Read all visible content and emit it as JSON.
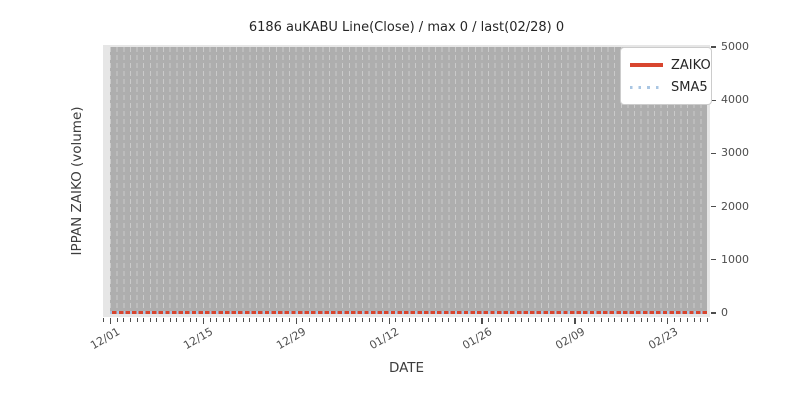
{
  "chart_data": {
    "type": "line",
    "title": "6186 auKABU Line(Close) / max 0 / last(02/28) 0",
    "xlabel": "DATE",
    "ylabel": "IPPAN ZAIKO (volume)",
    "ylim": [
      0,
      5000
    ],
    "yticks": [
      0,
      1000,
      2000,
      3000,
      4000,
      5000
    ],
    "x_major_ticks": [
      {
        "label": "12/01",
        "day": 0
      },
      {
        "label": "12/15",
        "day": 14
      },
      {
        "label": "12/29",
        "day": 28
      },
      {
        "label": "01/12",
        "day": 42
      },
      {
        "label": "01/26",
        "day": 56
      },
      {
        "label": "02/09",
        "day": 70
      },
      {
        "label": "02/23",
        "day": 84
      }
    ],
    "x_days_total": 90,
    "x_minor_tick_every_days": 1,
    "date_start": "12/01",
    "date_end": "02/28",
    "series": [
      {
        "name": "ZAIKO",
        "style": "solid",
        "color": "#d8452e",
        "constant_value": 0
      },
      {
        "name": "SMA5",
        "style": "dotted",
        "color": "#a9c6e3",
        "constant_value": 0
      }
    ],
    "stats": {
      "max": 0,
      "last_date": "02/28",
      "last_value": 0
    },
    "legend": {
      "position": "upper right",
      "entries": [
        "ZAIKO",
        "SMA5"
      ]
    },
    "grid": "vertical-dashed-daily",
    "colors": {
      "figure_bg": "#ffffff",
      "axes_bg": "#e6e6e6",
      "plot_band": "#aeaeae",
      "grid_dash": "#cacaca",
      "tick_color": "#4d4d4d",
      "tick_text": "#4d4d4d",
      "title_text": "#262626",
      "label_text": "#3d3d3d",
      "legend_bg": "#ffffff",
      "legend_border": "#cccccc"
    }
  }
}
